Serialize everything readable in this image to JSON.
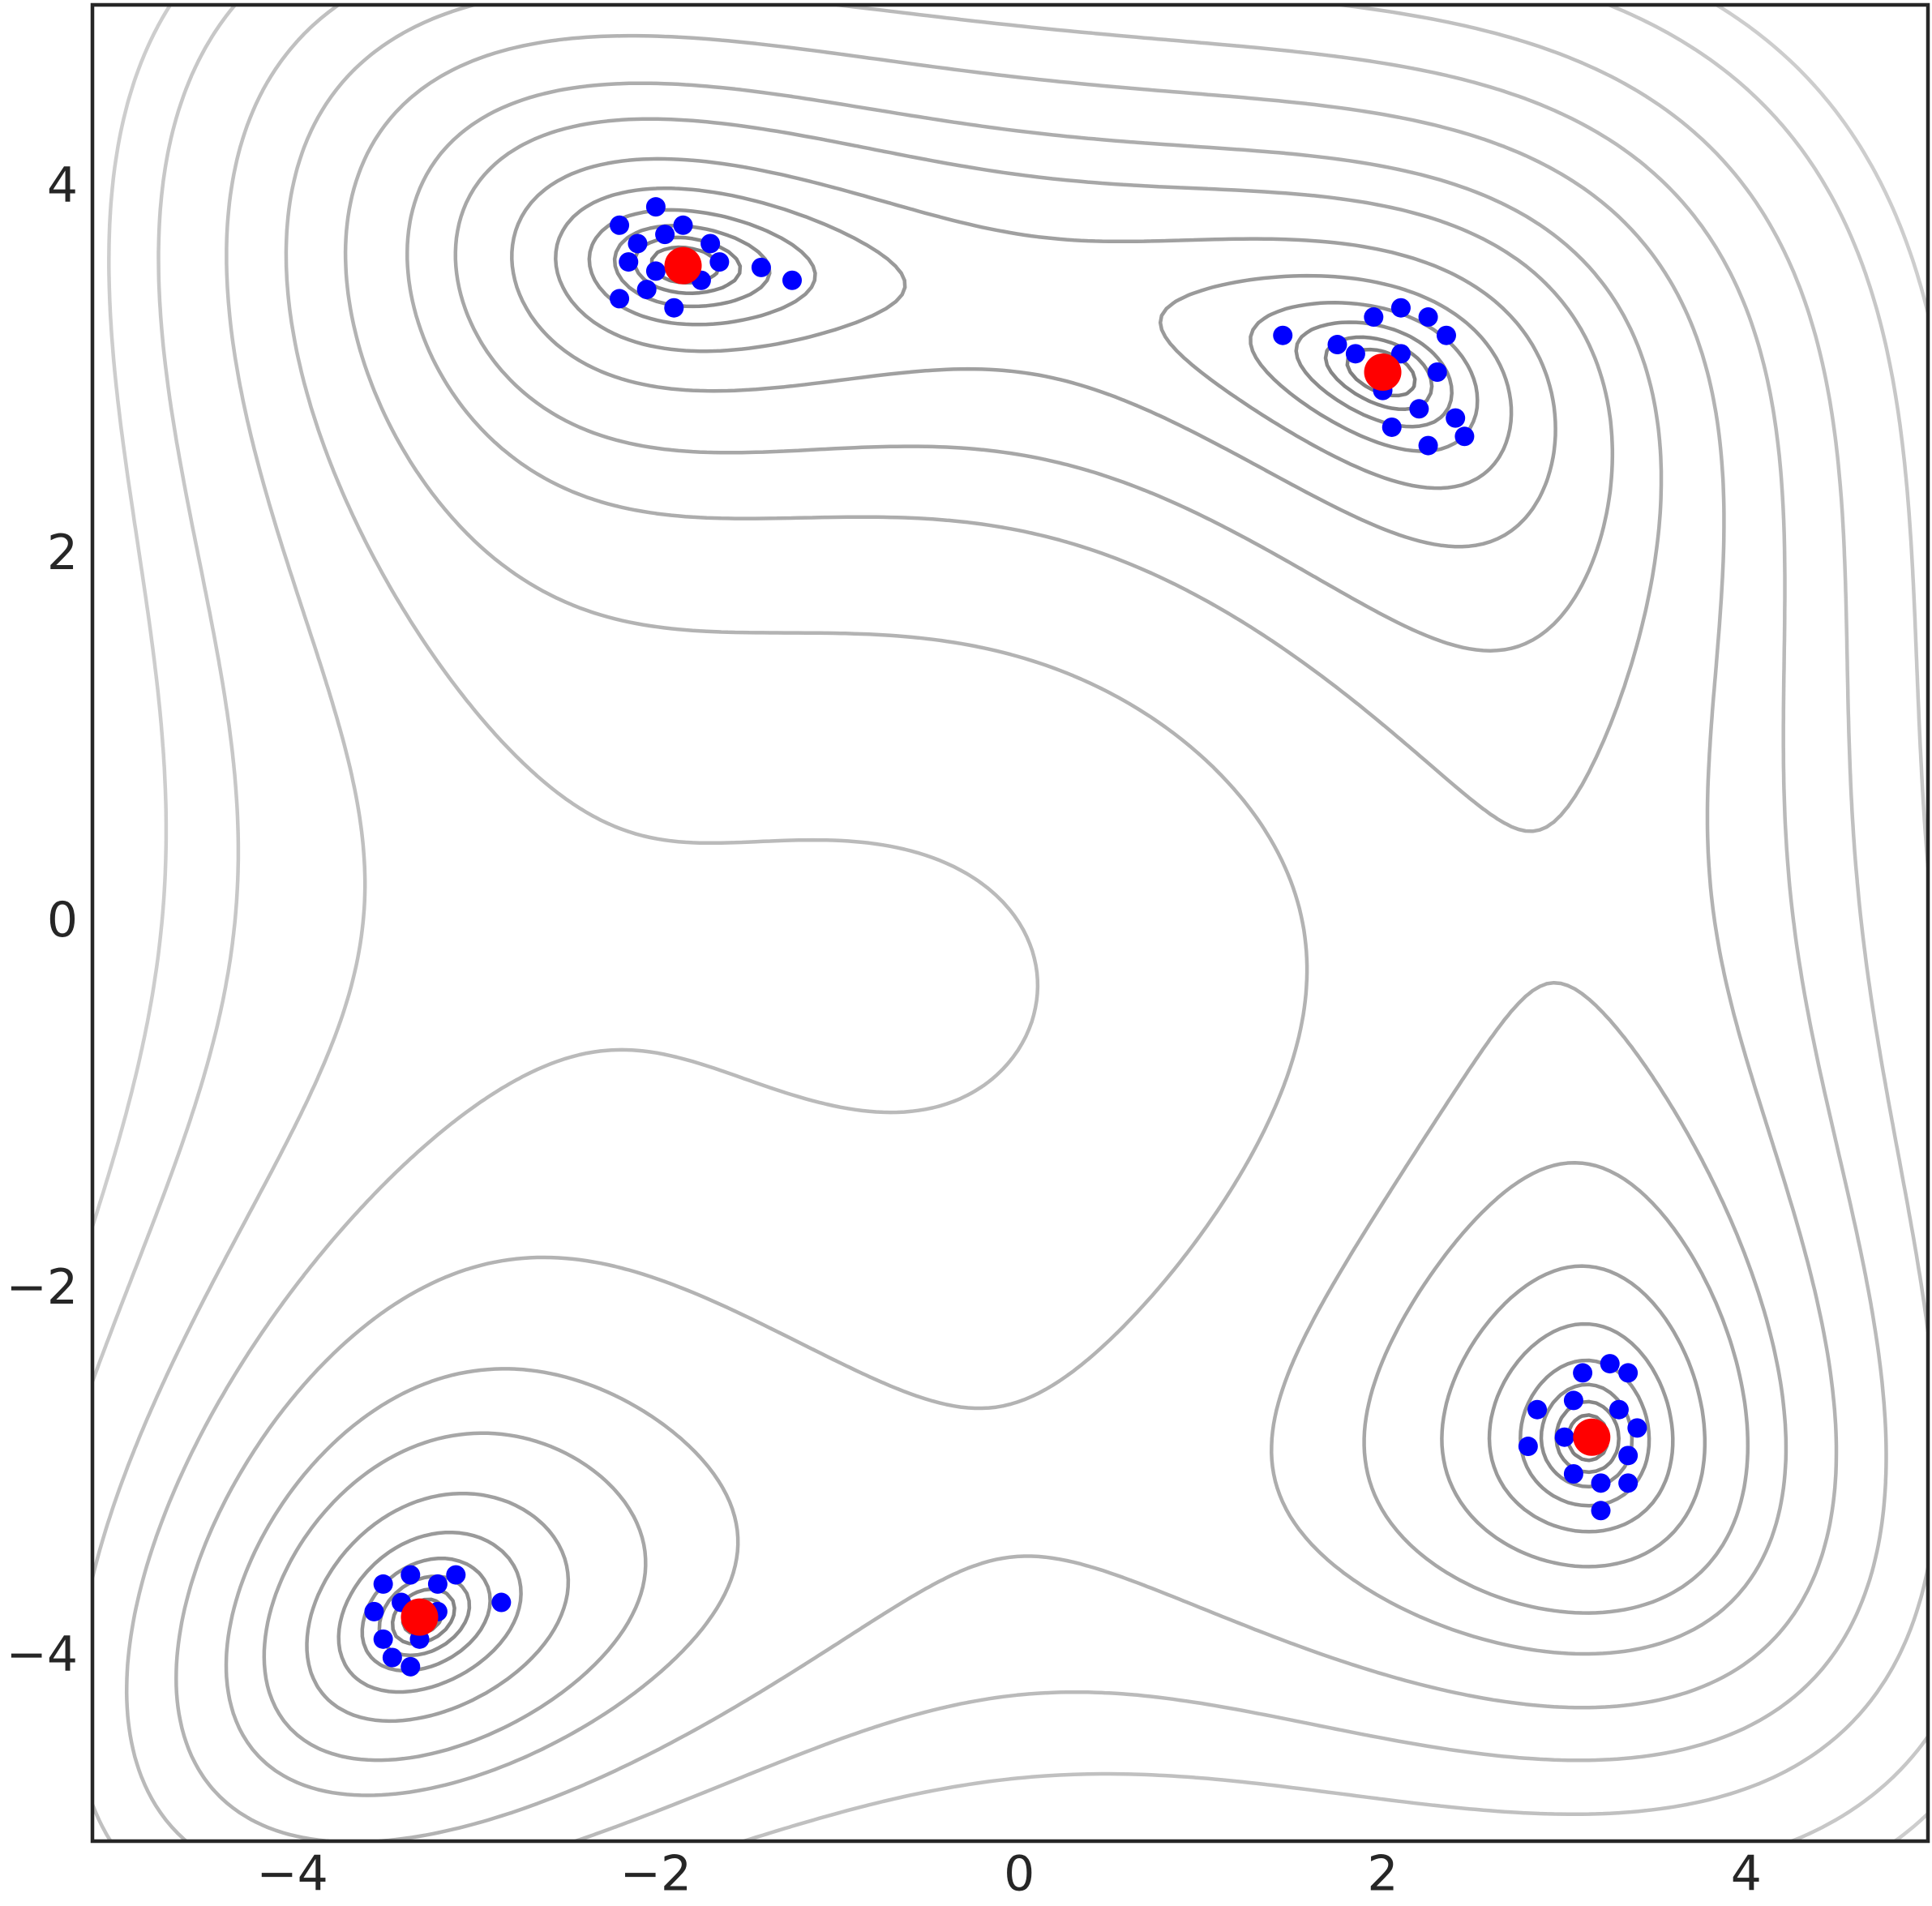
{
  "chart_data": {
    "type": "contour_scatter",
    "xlim": [
      -5.1,
      5.0
    ],
    "ylim": [
      -5,
      5
    ],
    "xticks": [
      {
        "value": -4,
        "label": "−4"
      },
      {
        "value": -2,
        "label": "−2"
      },
      0,
      2,
      4
    ],
    "yticks": [
      {
        "value": -4,
        "label": "−4"
      },
      {
        "value": -2,
        "label": "−2"
      },
      0,
      2,
      4
    ],
    "contour_levels": [
      0.5,
      1.2,
      2.5,
      5,
      10,
      20,
      40,
      65,
      110,
      170,
      250,
      370,
      480
    ],
    "series": [
      {
        "color": "#0000ff",
        "x": [
          -2.2,
          -2.1,
          -2.0,
          -1.95,
          -1.85,
          -1.7,
          -2.2,
          -2.05,
          -1.9,
          -1.75,
          -2.15,
          -1.65,
          -2.0,
          -1.42,
          -1.25,
          1.95,
          2.1,
          2.25,
          2.35,
          1.85,
          2.1,
          2.3,
          2.0,
          2.2,
          2.4,
          2.05,
          2.25,
          2.45,
          1.45,
          1.75,
          3.1,
          3.25,
          3.35,
          3.05,
          3.3,
          3.4,
          3.0,
          3.35,
          3.05,
          3.2,
          3.35,
          3.2,
          2.85,
          2.8,
          -3.5,
          -3.35,
          -3.2,
          -3.55,
          -3.4,
          -3.2,
          -3.5,
          -3.3,
          -3.45,
          -3.35,
          -3.1,
          -2.85
        ],
        "y": [
          3.8,
          3.7,
          3.9,
          3.75,
          3.8,
          3.7,
          3.4,
          3.45,
          3.35,
          3.5,
          3.6,
          3.6,
          3.55,
          3.57,
          3.5,
          3.3,
          3.35,
          3.3,
          3.2,
          3.1,
          3.1,
          3.0,
          2.9,
          2.8,
          2.75,
          2.7,
          2.6,
          2.65,
          3.2,
          3.15,
          -2.45,
          -2.4,
          -2.45,
          -2.6,
          -2.65,
          -2.75,
          -2.8,
          -2.9,
          -3.0,
          -3.05,
          -3.05,
          -3.2,
          -2.65,
          -2.85,
          -3.6,
          -3.55,
          -3.6,
          -3.75,
          -3.7,
          -3.75,
          -3.9,
          -3.9,
          -4.0,
          -4.05,
          -3.55,
          -3.7
        ]
      },
      {
        "color": "#ff0000",
        "x": [
          -1.85,
          2.0,
          3.15,
          -3.3
        ],
        "y": [
          3.58,
          3.0,
          -2.8,
          -3.78
        ]
      }
    ]
  }
}
